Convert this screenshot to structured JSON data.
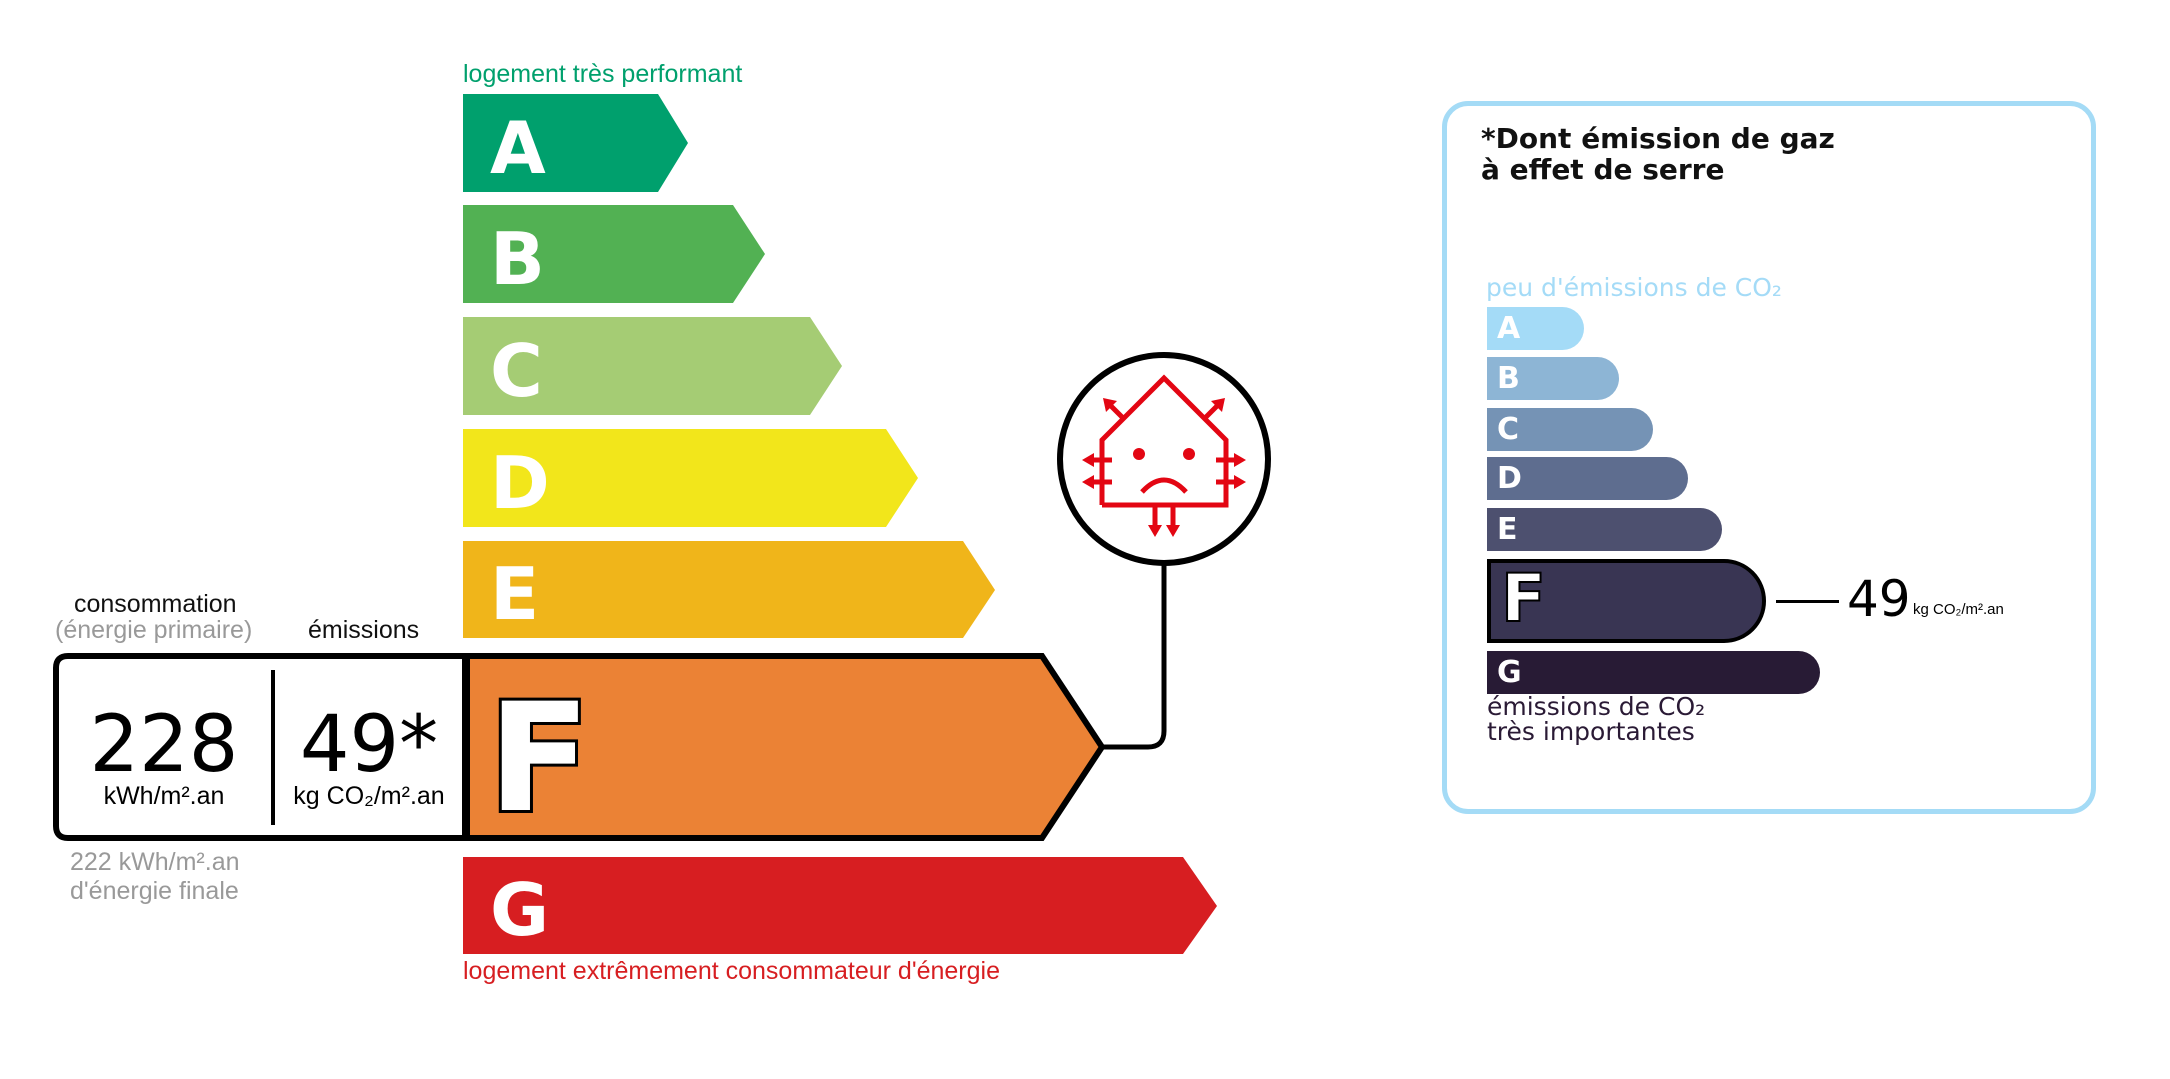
{
  "energy_scale": {
    "top_label": "logement très performant",
    "bottom_label": "logement extrêmement consommateur d'énergie",
    "classes": [
      {
        "letter": "A",
        "color": "#00a06d"
      },
      {
        "letter": "B",
        "color": "#52b153"
      },
      {
        "letter": "C",
        "color": "#a5cc74"
      },
      {
        "letter": "D",
        "color": "#f2e61b"
      },
      {
        "letter": "E",
        "color": "#f0b51a"
      },
      {
        "letter": "F",
        "color": "#eb8235"
      },
      {
        "letter": "G",
        "color": "#d71e21"
      }
    ],
    "current_class": "F",
    "top_label_color": "#00a06d",
    "bottom_label_color": "#d71e21"
  },
  "values": {
    "consumption_label": "consommation",
    "consumption_sublabel": "(énergie primaire)",
    "emissions_label": "émissions",
    "consumption_value": "228",
    "consumption_unit": "kWh/m².an",
    "emissions_value": "49*",
    "emissions_unit": "kg CO₂/m².an",
    "final_energy_value": "222 kWh/m².an",
    "final_energy_label": "d'énergie finale"
  },
  "icon": {
    "name": "house-heat-loss-sad-face-icon",
    "color": "#e30613"
  },
  "ghg_panel": {
    "title_line1": "*Dont émission de gaz",
    "title_line2": "à effet de serre",
    "top_label": "peu d'émissions de CO₂",
    "bottom_label_line1": "émissions de CO₂",
    "bottom_label_line2": "très importantes",
    "classes": [
      {
        "letter": "A",
        "color": "#a4dbf7"
      },
      {
        "letter": "B",
        "color": "#8db5d5"
      },
      {
        "letter": "C",
        "color": "#7593b5"
      },
      {
        "letter": "D",
        "color": "#5e6d8f"
      },
      {
        "letter": "E",
        "color": "#4d506f"
      },
      {
        "letter": "F",
        "color": "#393553"
      },
      {
        "letter": "G",
        "color": "#281b35"
      }
    ],
    "current_class": "F",
    "value": "49",
    "unit": "kg CO₂/m².an",
    "border_color": "#a4dbf6"
  }
}
